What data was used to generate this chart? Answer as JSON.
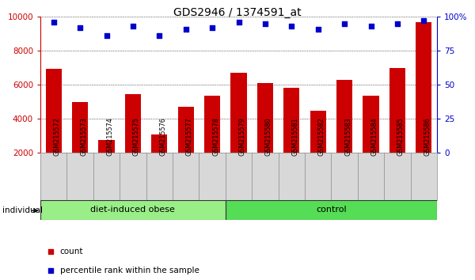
{
  "title": "GDS2946 / 1374591_at",
  "categories": [
    "GSM215572",
    "GSM215573",
    "GSM215574",
    "GSM215575",
    "GSM215576",
    "GSM215577",
    "GSM215578",
    "GSM215579",
    "GSM215580",
    "GSM215581",
    "GSM215582",
    "GSM215583",
    "GSM215584",
    "GSM215585",
    "GSM215586"
  ],
  "bar_values": [
    6950,
    4980,
    2750,
    5450,
    3050,
    4720,
    5370,
    6680,
    6100,
    5820,
    4450,
    6280,
    5370,
    6980,
    9700
  ],
  "scatter_values_pct": [
    96,
    92,
    86,
    93,
    86,
    91,
    92,
    96,
    95,
    93,
    91,
    95,
    93,
    95,
    97
  ],
  "bar_color": "#cc0000",
  "scatter_color": "#0000cc",
  "ylim_left": [
    2000,
    10000
  ],
  "ylim_right": [
    0,
    100
  ],
  "yticks_left": [
    2000,
    4000,
    6000,
    8000,
    10000
  ],
  "yticks_right": [
    0,
    25,
    50,
    75,
    100
  ],
  "ytick_labels_right": [
    "0",
    "25",
    "50",
    "75",
    "100%"
  ],
  "group1_label": "diet-induced obese",
  "group1_count": 7,
  "group2_label": "control",
  "group2_count": 8,
  "group_label": "individual",
  "legend_count": "count",
  "legend_pct": "percentile rank within the sample",
  "plot_bg": "#ffffff",
  "xtick_bg": "#d8d8d8",
  "group_color1": "#99ee88",
  "group_color2": "#55dd55"
}
